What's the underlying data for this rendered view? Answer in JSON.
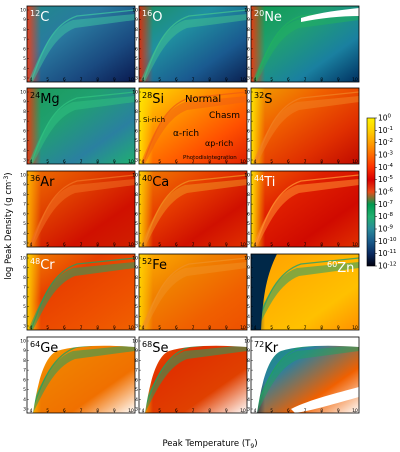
{
  "chart_data": {
    "type": "heatmap",
    "xlabel": "Peak Temperature (T",
    "xlabel_sub": "9",
    "xlabel_end": ")",
    "ylabel": "log Peak Density (g cm",
    "ylabel_sup": "-3",
    "ylabel_end": ")",
    "x_ticks": [
      "4",
      "5",
      "6",
      "7",
      "8",
      "9",
      "10"
    ],
    "y_ticks": [
      "3",
      "4",
      "5",
      "6",
      "7",
      "8",
      "9",
      "10"
    ],
    "xlim": [
      4,
      10
    ],
    "ylim": [
      3,
      10
    ],
    "color_scale": "log",
    "colorbar": {
      "ticks": [
        {
          "base": "10",
          "exp": "0"
        },
        {
          "base": "10",
          "exp": "-1"
        },
        {
          "base": "10",
          "exp": "-2"
        },
        {
          "base": "10",
          "exp": "-3"
        },
        {
          "base": "10",
          "exp": "-4"
        },
        {
          "base": "10",
          "exp": "-5"
        },
        {
          "base": "10",
          "exp": "-6"
        },
        {
          "base": "10",
          "exp": "-7"
        },
        {
          "base": "10",
          "exp": "-8"
        },
        {
          "base": "10",
          "exp": "-9"
        },
        {
          "base": "10",
          "exp": "-10"
        },
        {
          "base": "10",
          "exp": "-11"
        },
        {
          "base": "10",
          "exp": "-12"
        }
      ],
      "stops": [
        "#fff200",
        "#ffd000",
        "#ffa000",
        "#ff6a00",
        "#ff3000",
        "#d80000",
        "#e84c1a",
        "#009a50",
        "#22b070",
        "#2a8a9a",
        "#1a5a8a",
        "#0a2a60",
        "#000010"
      ]
    },
    "panels": [
      {
        "mass": "12",
        "element": "C",
        "label_color": "#ffffff",
        "style": "C"
      },
      {
        "mass": "16",
        "element": "O",
        "label_color": "#ffffff",
        "style": "O"
      },
      {
        "mass": "20",
        "element": "Ne",
        "label_color": "#ffffff",
        "style": "Ne"
      },
      {
        "mass": "24",
        "element": "Mg",
        "label_color": "#000000",
        "style": "Mg"
      },
      {
        "mass": "28",
        "element": "Si",
        "label_color": "#000000",
        "style": "Si"
      },
      {
        "mass": "32",
        "element": "S",
        "label_color": "#000000",
        "style": "S"
      },
      {
        "mass": "36",
        "element": "Ar",
        "label_color": "#000000",
        "style": "Ar"
      },
      {
        "mass": "40",
        "element": "Ca",
        "label_color": "#000000",
        "style": "Ca"
      },
      {
        "mass": "44",
        "element": "Ti",
        "label_color": "#ffffff",
        "style": "Ti"
      },
      {
        "mass": "48",
        "element": "Cr",
        "label_color": "#ffffff",
        "style": "Cr"
      },
      {
        "mass": "52",
        "element": "Fe",
        "label_color": "#000000",
        "style": "Fe"
      },
      {
        "mass": "60",
        "element": "Zn",
        "label_color": "#ffffff",
        "style": "Zn"
      },
      {
        "mass": "64",
        "element": "Ge",
        "label_color": "#000000",
        "style": "Ge"
      },
      {
        "mass": "68",
        "element": "Se",
        "label_color": "#000000",
        "style": "Se"
      },
      {
        "mass": "72",
        "element": "Kr",
        "label_color": "#000000",
        "style": "Kr"
      }
    ],
    "annotations": [
      {
        "text": "Normal",
        "panel": "Si"
      },
      {
        "text": "Chasm",
        "panel": "Si"
      },
      {
        "text": "Si-rich",
        "panel": "Si"
      },
      {
        "text": "α-rich",
        "panel": "Si"
      },
      {
        "text": "αp-rich",
        "panel": "Si"
      },
      {
        "text": "Photodisintegration",
        "panel": "Si"
      }
    ]
  }
}
